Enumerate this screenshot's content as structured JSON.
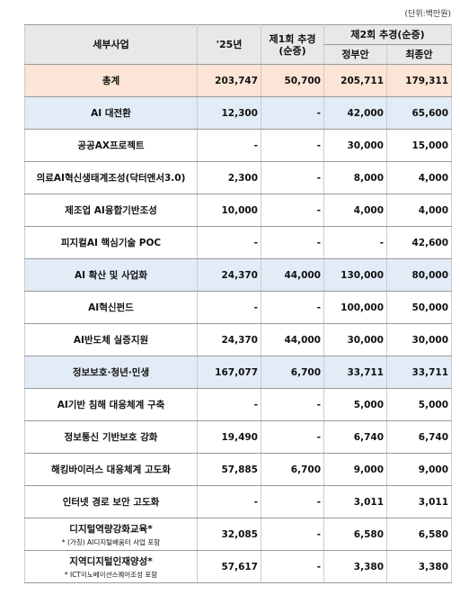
{
  "unit": "(단위:백만원)",
  "header": {
    "col0": "세부사업",
    "col1": "'25년",
    "col2": "제1회 추경\n(순증)",
    "group": "제2회 추경(순증)",
    "col3": "정부안",
    "col4": "최종안"
  },
  "table": {
    "rows": [
      {
        "color": "#fce4d6",
        "cells": [
          "총계",
          "203,747",
          "50,700",
          "205,711",
          "179,311"
        ]
      },
      {
        "color": "#e2ecf7",
        "cells": [
          "AI 대전환",
          "12,300",
          "-",
          "42,000",
          "65,600"
        ]
      },
      {
        "color": "#ffffff",
        "cells": [
          "공공AX프로젝트",
          "-",
          "-",
          "30,000",
          "15,000"
        ]
      },
      {
        "color": "#ffffff",
        "cells": [
          "의료AI혁신생태계조성(닥터앤서3.0)",
          "2,300",
          "-",
          "8,000",
          "4,000"
        ]
      },
      {
        "color": "#ffffff",
        "cells": [
          "제조업 AI융합기반조성",
          "10,000",
          "-",
          "4,000",
          "4,000"
        ]
      },
      {
        "color": "#ffffff",
        "cells": [
          "피지컬AI 핵심기술 POC",
          "-",
          "-",
          "-",
          "42,600"
        ]
      },
      {
        "color": "#e2ecf7",
        "cells": [
          "AI 확산 및 사업화",
          "24,370",
          "44,000",
          "130,000",
          "80,000"
        ]
      },
      {
        "color": "#ffffff",
        "cells": [
          "AI혁신펀드",
          "-",
          "-",
          "100,000",
          "50,000"
        ]
      },
      {
        "color": "#ffffff",
        "cells": [
          "AI반도체 실증지원",
          "24,370",
          "44,000",
          "30,000",
          "30,000"
        ]
      },
      {
        "color": "#e2ecf7",
        "cells": [
          "정보보호·청년·민생",
          "167,077",
          "6,700",
          "33,711",
          "33,711"
        ]
      },
      {
        "color": "#ffffff",
        "cells": [
          "AI기반 침해 대응체계 구축",
          "-",
          "-",
          "5,000",
          "5,000"
        ]
      },
      {
        "color": "#ffffff",
        "cells": [
          "정보통신 기반보호 강화",
          "19,490",
          "-",
          "6,740",
          "6,740"
        ]
      },
      {
        "color": "#ffffff",
        "cells": [
          "해킹바이러스 대응체계 고도화",
          "57,885",
          "6,700",
          "9,000",
          "9,000"
        ]
      },
      {
        "color": "#ffffff",
        "cells": [
          "인터넷 경로 보안 고도화",
          "-",
          "-",
          "3,011",
          "3,011"
        ]
      },
      {
        "color": "#ffffff",
        "cells": [
          "디지털역량강화교육*",
          "32,085",
          "-",
          "6,580",
          "6,580"
        ],
        "note": "* (가칭) AI디지털배움터 사업 포함"
      },
      {
        "color": "#ffffff",
        "cells": [
          "지역디지털인재양성*",
          "57,617",
          "-",
          "3,380",
          "3,380"
        ],
        "note": "* ICT이노베이션스퀘어조성 포함"
      }
    ]
  }
}
